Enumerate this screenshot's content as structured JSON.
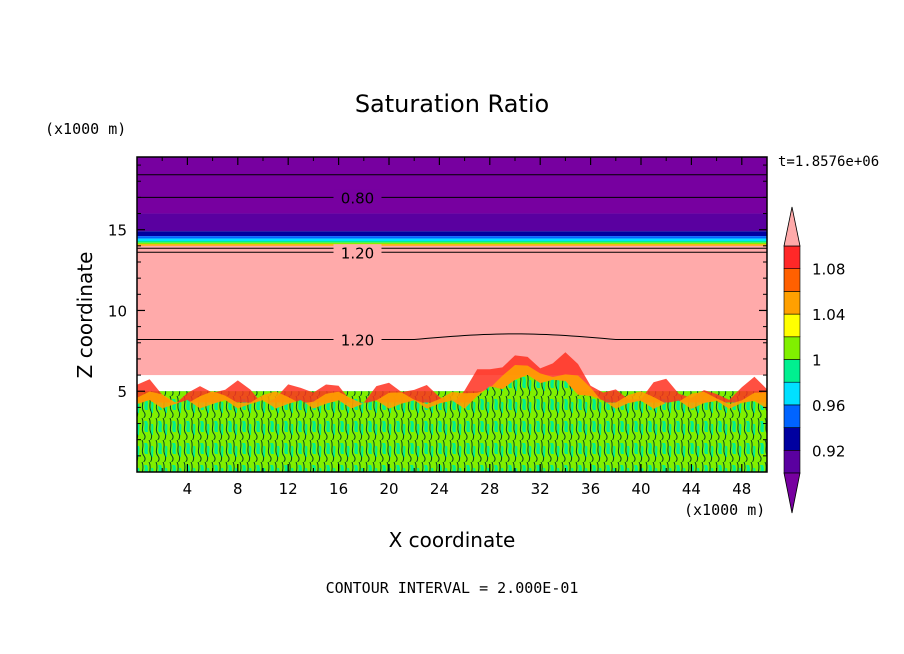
{
  "chart_data": {
    "type": "heatmap",
    "title": "Saturation Ratio",
    "xlabel": "X coordinate",
    "ylabel": "Z coordinate",
    "x_unit": "(x1000 m)",
    "y_unit": "(x1000 m)",
    "time_label": "t=1.8576e+06",
    "footer": "CONTOUR INTERVAL = 2.000E-01",
    "xlim": [
      0,
      50
    ],
    "ylim": [
      0,
      19.5
    ],
    "x_ticks": [
      "4",
      "8",
      "12",
      "16",
      "20",
      "24",
      "28",
      "32",
      "36",
      "40",
      "44",
      "48"
    ],
    "y_ticks": [
      "5",
      "10",
      "15"
    ],
    "contour_labels": [
      {
        "text": "0.80",
        "x": 17.5,
        "y": 17.0
      },
      {
        "text": "1.20",
        "x": 17.5,
        "y": 13.6
      },
      {
        "text": "1.20",
        "x": 17.5,
        "y": 8.2
      }
    ],
    "colorbar": {
      "tick_labels": [
        "1.08",
        "1.04",
        "1",
        "0.96",
        "0.92"
      ],
      "levels": [
        {
          "lo": 0.9,
          "hi": 0.92,
          "color": "#5a00a0"
        },
        {
          "lo": 0.92,
          "hi": 0.94,
          "color": "#0000a0"
        },
        {
          "lo": 0.94,
          "hi": 0.96,
          "color": "#0064ff"
        },
        {
          "lo": 0.96,
          "hi": 0.98,
          "color": "#00e0ff"
        },
        {
          "lo": 0.98,
          "hi": 1.0,
          "color": "#00f090"
        },
        {
          "lo": 1.0,
          "hi": 1.02,
          "color": "#80f000"
        },
        {
          "lo": 1.02,
          "hi": 1.04,
          "color": "#ffff00"
        },
        {
          "lo": 1.04,
          "hi": 1.06,
          "color": "#ffa000"
        },
        {
          "lo": 1.06,
          "hi": 1.08,
          "color": "#ff6000"
        },
        {
          "lo": 1.08,
          "hi": 1.1,
          "color": "#ff2828"
        }
      ],
      "under_color": "#7700a0",
      "over_color": "#ffaaaa"
    },
    "bands": [
      {
        "name": "upper-dry-layer",
        "z0": 16.0,
        "z1": 19.5,
        "color": "#7700a0"
      },
      {
        "name": "dark-band",
        "z0": 14.9,
        "z1": 16.0,
        "color": "#5a00a0"
      },
      {
        "name": "transition-1",
        "z0": 14.6,
        "z1": 14.9,
        "color": "#0000a0"
      },
      {
        "name": "transition-2",
        "z0": 14.45,
        "z1": 14.6,
        "color": "#0064ff"
      },
      {
        "name": "transition-3",
        "z0": 14.3,
        "z1": 14.45,
        "color": "#00e0ff"
      },
      {
        "name": "transition-4",
        "z0": 14.2,
        "z1": 14.3,
        "color": "#00f090"
      },
      {
        "name": "transition-5",
        "z0": 14.1,
        "z1": 14.2,
        "color": "#80f000"
      },
      {
        "name": "transition-6",
        "z0": 14.0,
        "z1": 14.1,
        "color": "#ffa000"
      },
      {
        "name": "supersaturated-layer",
        "z0": 6.0,
        "z1": 14.0,
        "color": "#ffaaaa"
      },
      {
        "name": "boundary-layer",
        "z0": 0.0,
        "z1": 5.0,
        "color": "#00f090"
      }
    ],
    "grid": false,
    "legend": "colorbar-right"
  }
}
